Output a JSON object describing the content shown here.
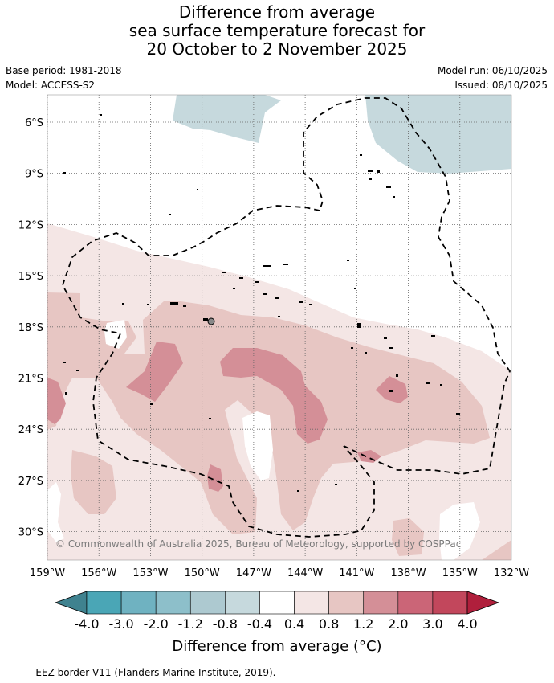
{
  "title": {
    "line1": "Difference from average",
    "line2": "sea surface temperature forecast for",
    "line3": "20 October to 2 November 2025"
  },
  "meta": {
    "base_period": "Base period: 1981-2018",
    "model": "Model: ACCESS-S2",
    "model_run": "Model run: 06/10/2025",
    "issued": "Issued: 08/10/2025"
  },
  "map": {
    "latitude_labels": [
      "6°S",
      "9°S",
      "12°S",
      "15°S",
      "18°S",
      "21°S",
      "24°S",
      "27°S",
      "30°S"
    ],
    "longitude_labels": [
      "159°W",
      "156°W",
      "153°W",
      "150°W",
      "147°W",
      "144°W",
      "141°W",
      "138°W",
      "135°W",
      "132°W"
    ],
    "copyright": "© Commonwealth of Australia 2025, Bureau of Meteorology, supported by COSPPac"
  },
  "colorbar": {
    "ticks": [
      "-4.0",
      "-3.0",
      "-2.0",
      "-1.2",
      "-0.8",
      "-0.4",
      "0.4",
      "0.8",
      "1.2",
      "2.0",
      "3.0",
      "4.0"
    ],
    "colors": [
      "#3f828f",
      "#4aa6b6",
      "#6fb2c1",
      "#8dbfca",
      "#adc9d0",
      "#c6d9dd",
      "#ffffff",
      "#f4e6e5",
      "#e7c6c3",
      "#d48f97",
      "#cb6577",
      "#c2475c",
      "#b01f3c"
    ],
    "title": "Difference from average (°C)"
  },
  "legend": {
    "eez_label": "--  --  -- EEZ border V11 (Flanders Marine Institute, 2019)."
  }
}
